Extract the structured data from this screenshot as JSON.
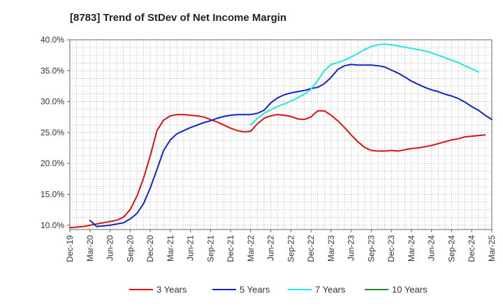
{
  "chart_data": {
    "type": "line",
    "title": "[8783]  Trend of StDev of Net Income Margin",
    "xlabel": "",
    "ylabel": "",
    "x_ticks": [
      "Dec-19",
      "Mar-20",
      "Jun-20",
      "Sep-20",
      "Dec-20",
      "Mar-21",
      "Jun-21",
      "Sep-21",
      "Dec-21",
      "Mar-22",
      "Jun-22",
      "Sep-22",
      "Dec-22",
      "Mar-23",
      "Jun-23",
      "Sep-23",
      "Dec-23",
      "Mar-24",
      "Jun-24",
      "Sep-24",
      "Dec-24",
      "Mar-25"
    ],
    "y_ticks": [
      "10.0%",
      "15.0%",
      "20.0%",
      "25.0%",
      "30.0%",
      "35.0%",
      "40.0%"
    ],
    "ylim": [
      9.3,
      40.0
    ],
    "y_tick_values": [
      10,
      15,
      20,
      25,
      30,
      35,
      40
    ],
    "grid": true,
    "legend_position": "bottom",
    "series": [
      {
        "name": "3 Years",
        "color": "#dd1111",
        "start_index": 0,
        "values": [
          9.6,
          9.7,
          9.8,
          10.0,
          10.2,
          10.4,
          10.6,
          10.8,
          11.3,
          12.5,
          14.7,
          17.6,
          21.2,
          25.3,
          27.0,
          27.7,
          27.9,
          27.9,
          27.8,
          27.7,
          27.5,
          27.1,
          26.7,
          26.2,
          25.7,
          25.3,
          25.1,
          25.2,
          26.4,
          27.3,
          27.7,
          27.9,
          27.8,
          27.6,
          27.2,
          27.1,
          27.5,
          28.5,
          28.5,
          27.8,
          26.9,
          25.8,
          24.6,
          23.5,
          22.6,
          22.1,
          22.0,
          22.0,
          22.1,
          22.0,
          22.2,
          22.4,
          22.5,
          22.7,
          22.9,
          23.2,
          23.5,
          23.8,
          24.0,
          24.3,
          24.4,
          24.5,
          24.6
        ]
      },
      {
        "name": "5 Years",
        "color": "#1122cc",
        "start_index": 3,
        "values": [
          10.8,
          9.8,
          9.9,
          10.0,
          10.2,
          10.4,
          11.0,
          11.9,
          13.5,
          16.0,
          19.0,
          22.1,
          23.8,
          24.8,
          25.3,
          25.8,
          26.2,
          26.6,
          26.9,
          27.3,
          27.6,
          27.8,
          27.9,
          27.9,
          27.9,
          28.1,
          28.6,
          29.8,
          30.6,
          31.1,
          31.4,
          31.6,
          31.8,
          32.1,
          32.3,
          32.9,
          33.9,
          35.2,
          35.8,
          36.0,
          35.9,
          35.9,
          35.9,
          35.8,
          35.6,
          35.1,
          34.6,
          34.0,
          33.3,
          32.8,
          32.3,
          31.9,
          31.6,
          31.2,
          30.9,
          30.5,
          29.9,
          29.2,
          28.6,
          27.8,
          27.1
        ]
      },
      {
        "name": "7 Years",
        "color": "#22e5e5",
        "start_index": 27,
        "values": [
          26.2,
          27.3,
          28.1,
          28.7,
          29.2,
          29.6,
          30.1,
          30.6,
          31.2,
          32.0,
          33.4,
          35.0,
          36.0,
          36.3,
          36.7,
          37.2,
          37.8,
          38.4,
          38.9,
          39.2,
          39.3,
          39.2,
          39.0,
          38.8,
          38.6,
          38.4,
          38.2,
          37.9,
          37.5,
          37.1,
          36.7,
          36.3,
          35.8,
          35.3,
          34.8
        ]
      },
      {
        "name": "10 Years",
        "color": "#228822",
        "start_index": 0,
        "values": []
      }
    ]
  }
}
